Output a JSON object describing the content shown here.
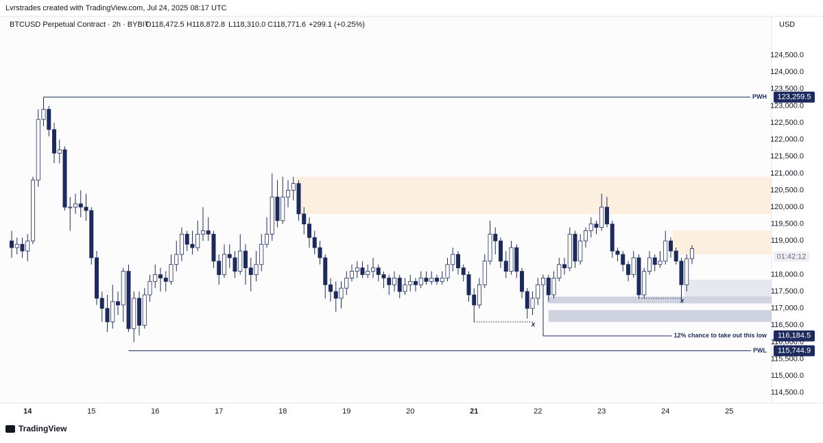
{
  "header": {
    "credit": "Lvrstrades created with TradingView.com, Jul 24, 2025 08:17 UTC",
    "symbol": "BTCUSD Perpetual Contract · 2h · BYBIT",
    "open": "O118,472.5",
    "high": "H118,872.8",
    "low": "L118,310.0",
    "close": "C118,771.6",
    "change": "+299.1 (+0.25%)"
  },
  "footer": {
    "brand": "TradingView"
  },
  "chart_data": {
    "type": "candlestick",
    "currency": "USD",
    "up_color": "#ffffff",
    "down_color": "#1c2a5e",
    "grid": false,
    "categories": [
      null,
      null,
      null,
      "14",
      null,
      null,
      null,
      null,
      null,
      null,
      null,
      null,
      null,
      null,
      null,
      "15",
      null,
      null,
      null,
      null,
      null,
      null,
      null,
      null,
      null,
      null,
      null,
      "16",
      null,
      null,
      null,
      null,
      null,
      null,
      null,
      null,
      null,
      null,
      null,
      "17",
      null,
      null,
      null,
      null,
      null,
      null,
      null,
      null,
      null,
      null,
      null,
      "18",
      null,
      null,
      null,
      null,
      null,
      null,
      null,
      null,
      null,
      null,
      null,
      "19",
      null,
      null,
      null,
      null,
      null,
      null,
      null,
      null,
      null,
      null,
      null,
      "20",
      null,
      null,
      null,
      null,
      null,
      null,
      null,
      null,
      null,
      null,
      null,
      "21",
      null,
      null,
      null,
      null,
      null,
      null,
      null,
      null,
      null,
      null,
      null,
      "22",
      null,
      null,
      null,
      null,
      null,
      null,
      null,
      null,
      null,
      null,
      null,
      "23",
      null,
      null,
      null,
      null,
      null,
      null,
      null,
      null,
      null,
      null,
      null,
      "24",
      null,
      null,
      null,
      null,
      null,
      null,
      null,
      null,
      null,
      null,
      null,
      "25",
      null,
      null,
      null,
      null,
      null,
      null,
      null,
      null
    ],
    "ohlc": [
      [
        119000,
        119300,
        118500,
        118800
      ],
      [
        118800,
        119100,
        118600,
        118900
      ],
      [
        118900,
        119100,
        118500,
        118700
      ],
      [
        118700,
        119200,
        118400,
        119000
      ],
      [
        119000,
        120900,
        118900,
        120800
      ],
      [
        120800,
        122900,
        120600,
        122600
      ],
      [
        122600,
        123259.5,
        122400,
        122900
      ],
      [
        122900,
        123000,
        122100,
        122300
      ],
      [
        122300,
        122500,
        121300,
        121600
      ],
      [
        121600,
        122000,
        121300,
        121700
      ],
      [
        121700,
        121800,
        119900,
        120000
      ],
      [
        120000,
        120300,
        119300,
        120000
      ],
      [
        120000,
        120400,
        119800,
        120100
      ],
      [
        120100,
        120500,
        119700,
        120000
      ],
      [
        120000,
        120400,
        119600,
        119900
      ],
      [
        119900,
        120000,
        118300,
        118500
      ],
      [
        118500,
        118700,
        117100,
        117300
      ],
      [
        117300,
        117500,
        116600,
        117000
      ],
      [
        117000,
        117400,
        116300,
        116600
      ],
      [
        116600,
        117700,
        116400,
        117200
      ],
      [
        117200,
        117500,
        116800,
        117100
      ],
      [
        117100,
        118200,
        116600,
        118100
      ],
      [
        118100,
        118300,
        116300,
        116400
      ],
      [
        116400,
        117500,
        116000,
        117300
      ],
      [
        117300,
        117500,
        116200,
        116500
      ],
      [
        116500,
        117600,
        116400,
        117400
      ],
      [
        117400,
        118000,
        117200,
        117800
      ],
      [
        117800,
        118300,
        117600,
        118000
      ],
      [
        118000,
        118200,
        117500,
        117900
      ],
      [
        117900,
        118100,
        117500,
        117800
      ],
      [
        117800,
        118600,
        117700,
        118300
      ],
      [
        118300,
        119000,
        118100,
        118600
      ],
      [
        118600,
        119400,
        118400,
        119200
      ],
      [
        119200,
        119300,
        118700,
        118900
      ],
      [
        118900,
        119300,
        118600,
        118800
      ],
      [
        118800,
        119600,
        118700,
        119200
      ],
      [
        119200,
        120000,
        119000,
        119300
      ],
      [
        119300,
        119700,
        119000,
        119200
      ],
      [
        119200,
        119300,
        118200,
        118400
      ],
      [
        118400,
        118600,
        117700,
        118000
      ],
      [
        118000,
        118900,
        117900,
        118600
      ],
      [
        118600,
        118900,
        118200,
        118500
      ],
      [
        118500,
        118700,
        117900,
        118100
      ],
      [
        118100,
        119200,
        118000,
        118700
      ],
      [
        118700,
        118900,
        117700,
        118200
      ],
      [
        118200,
        118500,
        117500,
        118000
      ],
      [
        118000,
        118700,
        117800,
        118300
      ],
      [
        118300,
        119200,
        118100,
        118900
      ],
      [
        118900,
        119700,
        118800,
        119200
      ],
      [
        119200,
        121000,
        119000,
        120300
      ],
      [
        120300,
        120800,
        119400,
        119600
      ],
      [
        119600,
        120900,
        119500,
        120300
      ],
      [
        120300,
        120800,
        120000,
        120500
      ],
      [
        120500,
        120900,
        120200,
        120700
      ],
      [
        120700,
        120800,
        119600,
        119800
      ],
      [
        119800,
        120000,
        119200,
        119500
      ],
      [
        119500,
        119700,
        118800,
        119100
      ],
      [
        119100,
        119300,
        118600,
        118800
      ],
      [
        118800,
        119000,
        118300,
        118500
      ],
      [
        118500,
        118600,
        117300,
        117700
      ],
      [
        117700,
        117900,
        117200,
        117500
      ],
      [
        117500,
        117800,
        116900,
        117300
      ],
      [
        117300,
        117800,
        117000,
        117600
      ],
      [
        117600,
        118100,
        117400,
        117900
      ],
      [
        117900,
        118300,
        117800,
        118100
      ],
      [
        118100,
        118400,
        117900,
        118200
      ],
      [
        118200,
        118400,
        117900,
        118000
      ],
      [
        118000,
        118300,
        117900,
        118100
      ],
      [
        118100,
        118500,
        117900,
        118200
      ],
      [
        118200,
        118300,
        117800,
        118000
      ],
      [
        118000,
        118100,
        117600,
        117900
      ],
      [
        117900,
        118000,
        117400,
        117700
      ],
      [
        117700,
        118100,
        117500,
        117900
      ],
      [
        117900,
        118000,
        117300,
        117500
      ],
      [
        117500,
        117900,
        117400,
        117700
      ],
      [
        117700,
        118000,
        117500,
        117800
      ],
      [
        117800,
        117900,
        117500,
        117700
      ],
      [
        117700,
        118100,
        117600,
        117900
      ],
      [
        117900,
        118100,
        117700,
        117800
      ],
      [
        117800,
        118100,
        117700,
        117900
      ],
      [
        117900,
        118000,
        117700,
        117800
      ],
      [
        117800,
        118100,
        117700,
        117900
      ],
      [
        117900,
        118500,
        117800,
        118300
      ],
      [
        118300,
        118800,
        118100,
        118600
      ],
      [
        118600,
        118700,
        118000,
        118200
      ],
      [
        118200,
        118300,
        117800,
        118000
      ],
      [
        118000,
        118100,
        117200,
        117400
      ],
      [
        117400,
        117600,
        116600,
        117100
      ],
      [
        117100,
        117900,
        117000,
        117700
      ],
      [
        117700,
        118600,
        117600,
        118400
      ],
      [
        118400,
        119600,
        118300,
        119200
      ],
      [
        119200,
        119400,
        118600,
        119000
      ],
      [
        119000,
        119100,
        118200,
        118400
      ],
      [
        118400,
        118700,
        117900,
        118100
      ],
      [
        118100,
        119000,
        118000,
        118800
      ],
      [
        118800,
        118900,
        117900,
        118100
      ],
      [
        118100,
        118200,
        117300,
        117500
      ],
      [
        117500,
        117600,
        116700,
        117000
      ],
      [
        117000,
        117500,
        116800,
        117300
      ],
      [
        117300,
        117900,
        117100,
        117700
      ],
      [
        117700,
        118000,
        116600,
        117900
      ],
      [
        117900,
        118000,
        117200,
        117400
      ],
      [
        117400,
        118100,
        117300,
        117900
      ],
      [
        117900,
        118500,
        117800,
        118300
      ],
      [
        118300,
        118500,
        118000,
        118200
      ],
      [
        118200,
        119400,
        118100,
        119200
      ],
      [
        119200,
        119300,
        118200,
        118400
      ],
      [
        118400,
        119200,
        118300,
        119000
      ],
      [
        119000,
        119400,
        118800,
        119300
      ],
      [
        119300,
        119700,
        119100,
        119500
      ],
      [
        119500,
        119600,
        119200,
        119400
      ],
      [
        119400,
        120400,
        119300,
        120000
      ],
      [
        120000,
        120300,
        119400,
        119500
      ],
      [
        119500,
        119600,
        118500,
        118700
      ],
      [
        118700,
        118800,
        118400,
        118600
      ],
      [
        118600,
        118700,
        118100,
        118300
      ],
      [
        118300,
        118400,
        117800,
        118000
      ],
      [
        118000,
        118700,
        117900,
        118500
      ],
      [
        118500,
        118600,
        117300,
        117400
      ],
      [
        117400,
        118200,
        117300,
        118100
      ],
      [
        118100,
        118700,
        118000,
        118500
      ],
      [
        118500,
        118600,
        118100,
        118300
      ],
      [
        118300,
        118700,
        118200,
        118400
      ],
      [
        118400,
        119300,
        118300,
        119000
      ],
      [
        119000,
        119100,
        118500,
        118700
      ],
      [
        118700,
        118800,
        118300,
        118400
      ],
      [
        118400,
        118500,
        117200,
        117700
      ],
      [
        117700,
        118600,
        117500,
        118472.5
      ],
      [
        118472.5,
        118872.8,
        118310,
        118771.6
      ],
      null,
      null,
      null,
      null,
      null,
      null,
      null,
      null,
      null,
      null,
      null,
      null,
      null,
      null,
      null
    ],
    "ylim": [
      114190,
      125650
    ],
    "yticks": [
      {
        "value": 114500,
        "label": "114,500.0"
      },
      {
        "value": 115000,
        "label": "115,000.0"
      },
      {
        "value": 115500,
        "label": "115,500.0"
      },
      {
        "value": 116000,
        "label": "116,000.0"
      },
      {
        "value": 116500,
        "label": "116,500.0"
      },
      {
        "value": 117000,
        "label": "117,000.0"
      },
      {
        "value": 117500,
        "label": "117,500.0"
      },
      {
        "value": 118000,
        "label": "118,000.0"
      },
      {
        "value": 119000,
        "label": "119,000.0"
      },
      {
        "value": 119500,
        "label": "119,500.0"
      },
      {
        "value": 120000,
        "label": "120,000.0"
      },
      {
        "value": 120500,
        "label": "120,500.0"
      },
      {
        "value": 121000,
        "label": "121,000.0"
      },
      {
        "value": 121500,
        "label": "121,500.0"
      },
      {
        "value": 122000,
        "label": "122,000.0"
      },
      {
        "value": 122500,
        "label": "122,500.0"
      },
      {
        "value": 123000,
        "label": "123,000.0"
      },
      {
        "value": 123500,
        "label": "123,500.0"
      },
      {
        "value": 124000,
        "label": "124,000.0"
      },
      {
        "value": 124500,
        "label": "124,500.0"
      }
    ],
    "zones": [
      {
        "top": 120900,
        "bottom": 119800,
        "color": "#fdefdf"
      },
      {
        "top": 119300,
        "bottom": 118600,
        "color": "#fdefdf"
      },
      {
        "top": 117850,
        "bottom": 117150,
        "color": "#e6e8ef"
      },
      {
        "top": 117350,
        "bottom": 117150,
        "color": "#cfd3df"
      },
      {
        "top": 116950,
        "bottom": 116600,
        "color": "#cfd3df"
      }
    ],
    "levels": [
      {
        "name": "PWH",
        "value": 123259.5,
        "value_label": "123,259.5"
      },
      {
        "name": "12% chance to take out this low",
        "value": 116184.5,
        "value_label": "116,184.5"
      },
      {
        "name": "PWL",
        "value": 115744.9,
        "value_label": "115,744.9"
      }
    ],
    "markers": [
      "x",
      "x"
    ],
    "countdown": "01:42:12"
  }
}
